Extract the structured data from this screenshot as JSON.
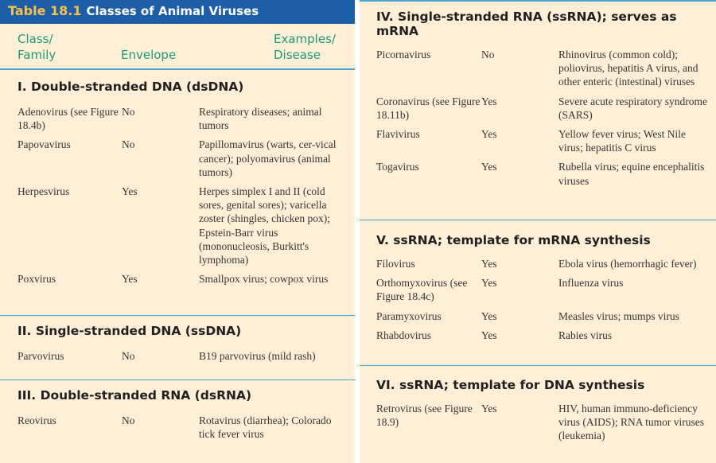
{
  "table": {
    "number": "Table 18.1",
    "title": "Classes of Animal Viruses",
    "columns": {
      "class": "Class/\nFamily",
      "envelope": "Envelope",
      "examples": "Examples/\nDisease"
    }
  },
  "sections": [
    {
      "heading": "I. Double-stranded DNA (dsDNA)",
      "rows": [
        {
          "family": "Adenovirus (see Figure 18.4b)",
          "envelope": "No",
          "examples": "Respiratory diseases; animal tumors"
        },
        {
          "family": "Papovavirus",
          "envelope": "No",
          "examples": "Papillomavirus (warts, cer-vical cancer); polyomavirus (animal tumors)"
        },
        {
          "family": "Herpesvirus",
          "envelope": "Yes",
          "examples": "Herpes simplex I and II (cold sores, genital sores); varicella zoster (shingles, chicken pox); Epstein-Barr virus (mononucleosis, Burkitt's lymphoma)"
        },
        {
          "family": "Poxvirus",
          "envelope": "Yes",
          "examples": "Smallpox virus; cowpox virus"
        }
      ]
    },
    {
      "heading": "II. Single-stranded DNA (ssDNA)",
      "rows": [
        {
          "family": "Parvovirus",
          "envelope": "No",
          "examples": "B19 parvovirus (mild rash)"
        }
      ]
    },
    {
      "heading": "III. Double-stranded RNA (dsRNA)",
      "rows": [
        {
          "family": "Reovirus",
          "envelope": "No",
          "examples": "Rotavirus (diarrhea); Colorado tick fever virus"
        }
      ]
    },
    {
      "heading": "IV. Single-stranded RNA (ssRNA); serves as mRNA",
      "rows": [
        {
          "family": "Picornavirus",
          "envelope": "No",
          "examples": "Rhinovirus (common cold); poliovirus, hepatitis A virus, and other enteric (intestinal) viruses"
        },
        {
          "family": "Coronavirus (see Figure 18.11b)",
          "envelope": "Yes",
          "examples": "Severe acute respiratory syndrome (SARS)"
        },
        {
          "family": "Flavivirus",
          "envelope": "Yes",
          "examples": "Yellow fever virus; West Nile virus; hepatitis C virus"
        },
        {
          "family": "Togavirus",
          "envelope": "Yes",
          "examples": "Rubella virus; equine encephalitis viruses"
        }
      ]
    },
    {
      "heading": "V. ssRNA; template for mRNA synthesis",
      "rows": [
        {
          "family": "Filovirus",
          "envelope": "Yes",
          "examples": "Ebola virus (hemorrhagic fever)"
        },
        {
          "family": "Orthomyxovirus (see Figure 18.4c)",
          "envelope": "Yes",
          "examples": "Influenza virus"
        },
        {
          "family": "Paramyxovirus",
          "envelope": "Yes",
          "examples": "Measles virus; mumps virus"
        },
        {
          "family": "Rhabdovirus",
          "envelope": "Yes",
          "examples": "Rabies virus"
        }
      ]
    },
    {
      "heading": "VI. ssRNA; template for DNA synthesis",
      "rows": [
        {
          "family": "Retrovirus (see Figure 18.9)",
          "envelope": "Yes",
          "examples": "HIV, human immuno-deficiency virus (AIDS); RNA tumor viruses (leukemia)"
        }
      ]
    }
  ]
}
